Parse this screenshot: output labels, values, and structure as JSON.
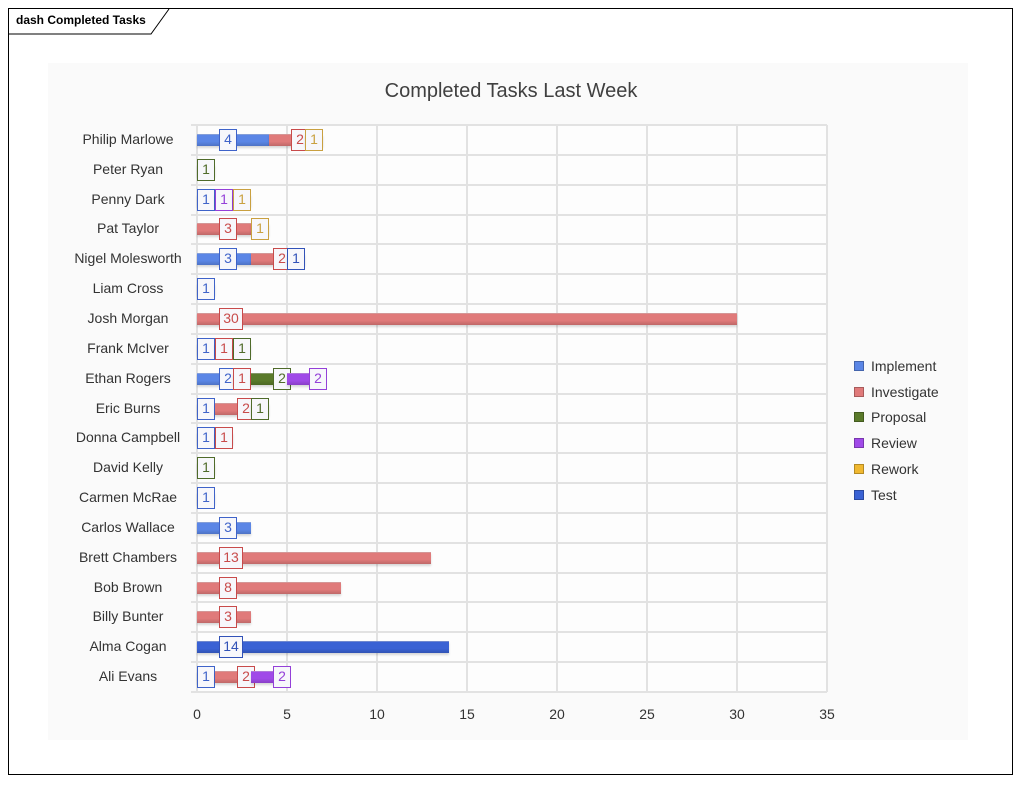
{
  "diagram": {
    "frame_label": "dash Completed Tasks"
  },
  "chart_data": {
    "type": "bar",
    "orientation": "horizontal",
    "stacked": true,
    "title": "Completed Tasks Last Week",
    "xlabel": "",
    "ylabel": "",
    "xlim": [
      0,
      35
    ],
    "xticks": [
      0,
      5,
      10,
      15,
      20,
      25,
      30,
      35
    ],
    "grid": true,
    "legend_position": "right",
    "categories": [
      "Philip Marlowe",
      "Peter Ryan",
      "Penny Dark",
      "Pat Taylor",
      "Nigel Molesworth",
      "Liam Cross",
      "Josh Morgan",
      "Frank McIver",
      "Ethan Rogers",
      "Eric Burns",
      "Donna Campbell",
      "David Kelly",
      "Carmen McRae",
      "Carlos Wallace",
      "Brett Chambers",
      "Bob Brown",
      "Billy Bunter",
      "Alma Cogan",
      "Ali Evans"
    ],
    "series": [
      {
        "name": "Implement",
        "color": "#5b86e6",
        "label_color": "#3f63c9",
        "values": [
          4,
          0,
          1,
          0,
          3,
          1,
          0,
          1,
          2,
          1,
          1,
          0,
          1,
          3,
          0,
          0,
          0,
          0,
          1
        ]
      },
      {
        "name": "Investigate",
        "color": "#e07a7a",
        "label_color": "#c84b4b",
        "values": [
          2,
          0,
          0,
          3,
          2,
          0,
          30,
          1,
          1,
          2,
          1,
          0,
          0,
          0,
          13,
          8,
          3,
          0,
          2
        ]
      },
      {
        "name": "Proposal",
        "color": "#5a7a2a",
        "label_color": "#4f6b2a",
        "values": [
          0,
          1,
          0,
          0,
          0,
          0,
          0,
          1,
          2,
          1,
          0,
          1,
          0,
          0,
          0,
          0,
          0,
          0,
          0
        ]
      },
      {
        "name": "Review",
        "color": "#a04ae8",
        "label_color": "#9440d8",
        "values": [
          0,
          0,
          1,
          0,
          0,
          0,
          0,
          0,
          2,
          0,
          0,
          0,
          0,
          0,
          0,
          0,
          0,
          0,
          2
        ]
      },
      {
        "name": "Rework",
        "color": "#f0b830",
        "label_color": "#c9a040",
        "values": [
          1,
          0,
          1,
          1,
          0,
          0,
          0,
          0,
          0,
          0,
          0,
          0,
          0,
          0,
          0,
          0,
          0,
          0,
          0
        ]
      },
      {
        "name": "Test",
        "color": "#3a62d4",
        "label_color": "#3252b8",
        "values": [
          0,
          0,
          0,
          0,
          1,
          0,
          0,
          0,
          0,
          0,
          0,
          0,
          0,
          0,
          0,
          0,
          0,
          14,
          0
        ]
      }
    ]
  }
}
